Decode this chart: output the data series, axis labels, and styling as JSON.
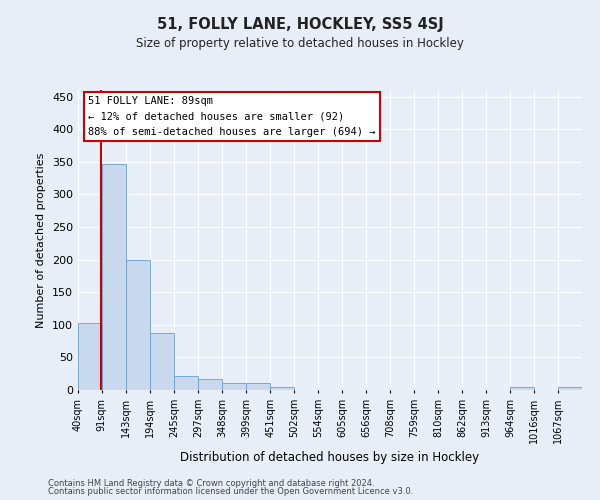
{
  "title1": "51, FOLLY LANE, HOCKLEY, SS5 4SJ",
  "title2": "Size of property relative to detached houses in Hockley",
  "xlabel": "Distribution of detached houses by size in Hockley",
  "ylabel": "Number of detached properties",
  "footer1": "Contains HM Land Registry data © Crown copyright and database right 2024.",
  "footer2": "Contains public sector information licensed under the Open Government Licence v3.0.",
  "annotation_title": "51 FOLLY LANE: 89sqm",
  "annotation_line2": "← 12% of detached houses are smaller (92)",
  "annotation_line3": "88% of semi-detached houses are larger (694) →",
  "property_line_x": 89,
  "bar_color": "#c8d9ed",
  "bar_edge_color": "#6a9fc8",
  "property_line_color": "#cc0000",
  "annotation_box_color": "#ffffff",
  "annotation_box_edge_color": "#cc0000",
  "background_color": "#e8eef8",
  "grid_color": "#ffffff",
  "categories": [
    "40sqm",
    "91sqm",
    "143sqm",
    "194sqm",
    "245sqm",
    "297sqm",
    "348sqm",
    "399sqm",
    "451sqm",
    "502sqm",
    "554sqm",
    "605sqm",
    "656sqm",
    "708sqm",
    "759sqm",
    "810sqm",
    "862sqm",
    "913sqm",
    "964sqm",
    "1016sqm",
    "1067sqm"
  ],
  "bin_edges": [
    40,
    91,
    143,
    194,
    245,
    297,
    348,
    399,
    451,
    502,
    554,
    605,
    656,
    708,
    759,
    810,
    862,
    913,
    964,
    1016,
    1067,
    1118
  ],
  "values": [
    103,
    347,
    200,
    88,
    22,
    17,
    11,
    11,
    5,
    0,
    0,
    0,
    0,
    0,
    0,
    0,
    0,
    0,
    5,
    0,
    5
  ],
  "ylim": [
    0,
    460
  ],
  "yticks": [
    0,
    50,
    100,
    150,
    200,
    250,
    300,
    350,
    400,
    450
  ]
}
